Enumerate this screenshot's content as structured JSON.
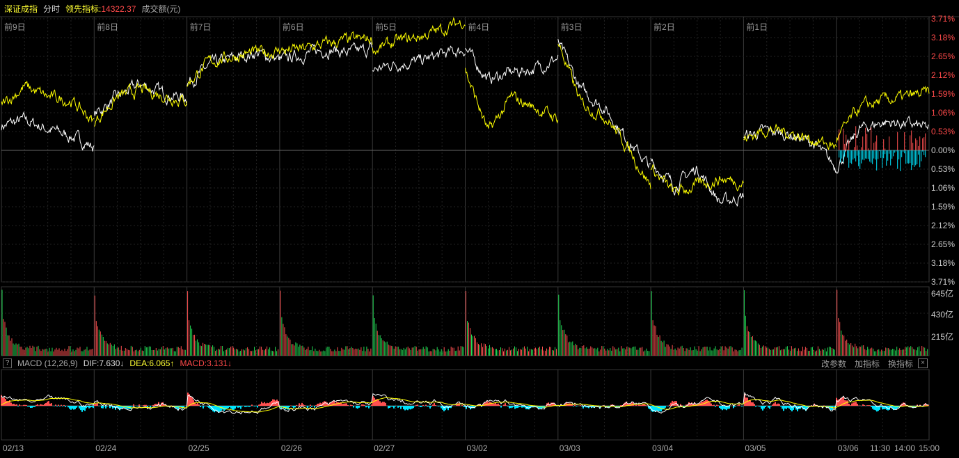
{
  "header": {
    "index_name": "深证成指",
    "mode": "分时",
    "lead_label": "领先指标:",
    "lead_value": "14322.37",
    "volume_label": "成交额(元)"
  },
  "day_labels": [
    "前9日",
    "前8日",
    "前7日",
    "前6日",
    "前5日",
    "前4日",
    "前3日",
    "前2日",
    "前1日",
    ""
  ],
  "right_axis": [
    "3.71%",
    "3.18%",
    "2.65%",
    "2.12%",
    "1.59%",
    "1.06%",
    "0.53%",
    "0.00%",
    "0.53%",
    "1.06%",
    "1.59%",
    "2.12%",
    "2.65%",
    "3.18%",
    "3.71%"
  ],
  "volume_axis": [
    "645亿",
    "430亿",
    "215亿"
  ],
  "macd": {
    "help": "?",
    "name": "MACD (12,26,9)",
    "dif": "DIF:7.630↓",
    "dea": "DEA:6.065↑",
    "macd": "MACD:3.131↓",
    "change_params": "改参数",
    "add_indicator": "加指标",
    "switch_indicator": "换指标",
    "close": "×"
  },
  "x_axis": [
    "02/13",
    "02/24",
    "02/25",
    "02/26",
    "02/27",
    "03/02",
    "03/03",
    "03/04",
    "03/05",
    "03/06"
  ],
  "time_labels": [
    "11:30",
    "14:00",
    "15:00"
  ],
  "colors": {
    "up": "#ff5050",
    "down": "#22dd55",
    "cyan": "#00e5ff",
    "white_line": "#ffffff",
    "yellow_line": "#ffff00",
    "grid": "#2a2a2a"
  },
  "chart_data": {
    "type": "line",
    "yunit": "%",
    "ylim": [
      -3.71,
      3.71
    ],
    "series": [
      {
        "key": "index",
        "color": "#ffffff",
        "days": [
          [
            0.69,
            0.85,
            0.6,
            0.4,
            0.1
          ],
          [
            1.0,
            1.5,
            1.87,
            1.6,
            1.47
          ],
          [
            1.87,
            2.4,
            2.6,
            2.75,
            2.55
          ],
          [
            2.55,
            2.7,
            2.85,
            2.75,
            2.85
          ],
          [
            2.26,
            2.45,
            2.5,
            2.7,
            2.85
          ],
          [
            2.85,
            2.0,
            2.2,
            2.3,
            2.6
          ],
          [
            3.05,
            1.7,
            1.2,
            0.3,
            -0.5
          ],
          [
            -0.3,
            -1.0,
            -0.5,
            -1.47,
            -1.3
          ],
          [
            0.39,
            0.55,
            0.45,
            0.2,
            -0.5
          ],
          [
            -0.5,
            0.6,
            0.8,
            0.75,
            0.6
          ]
        ]
      },
      {
        "key": "lead",
        "color": "#ffff00",
        "days": [
          [
            1.28,
            1.8,
            1.5,
            1.4,
            0.8
          ],
          [
            0.8,
            1.5,
            1.7,
            1.55,
            1.4
          ],
          [
            1.87,
            2.5,
            2.65,
            2.75,
            2.8
          ],
          [
            2.8,
            2.85,
            3.0,
            3.1,
            3.14
          ],
          [
            2.8,
            3.05,
            3.2,
            3.4,
            3.67
          ],
          [
            2.26,
            0.5,
            1.5,
            1.2,
            0.9
          ],
          [
            3.05,
            1.3,
            1.0,
            0.1,
            -1.0
          ],
          [
            -0.5,
            -1.2,
            -1.0,
            -0.8,
            -0.9
          ],
          [
            0.3,
            0.6,
            0.5,
            0.3,
            0.1
          ],
          [
            0.3,
            1.2,
            1.4,
            1.5,
            1.62
          ]
        ]
      }
    ]
  }
}
